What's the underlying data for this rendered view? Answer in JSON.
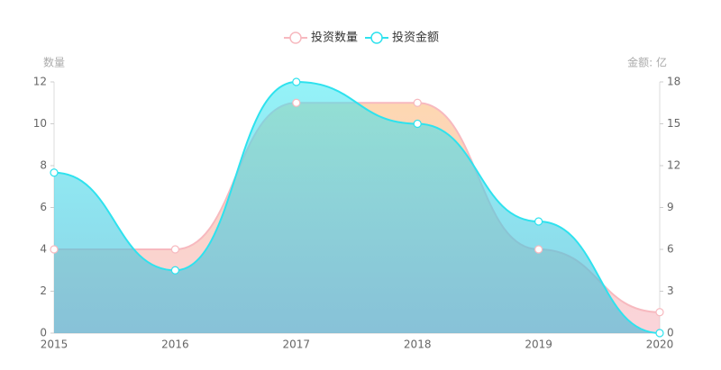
{
  "chart_data": {
    "type": "area",
    "legend_position": "top",
    "categories": [
      "2015",
      "2016",
      "2017",
      "2018",
      "2019",
      "2020"
    ],
    "y_axis_label": "数量",
    "y2_axis_label": "金额: 亿",
    "ylim": [
      0,
      12
    ],
    "yticks": [
      0,
      2,
      4,
      6,
      8,
      10,
      12
    ],
    "y2lim": [
      0,
      18
    ],
    "y2ticks": [
      0,
      3,
      6,
      9,
      12,
      15,
      18
    ],
    "series": [
      {
        "name": "投资数量",
        "color": "#f7b9bf",
        "values": [
          4,
          4,
          11,
          11,
          4,
          1
        ]
      },
      {
        "name": "投资金额",
        "color": "#2ee2ee",
        "axis": "y2",
        "values": [
          11.5,
          4.5,
          18,
          15,
          8,
          0
        ]
      }
    ]
  }
}
